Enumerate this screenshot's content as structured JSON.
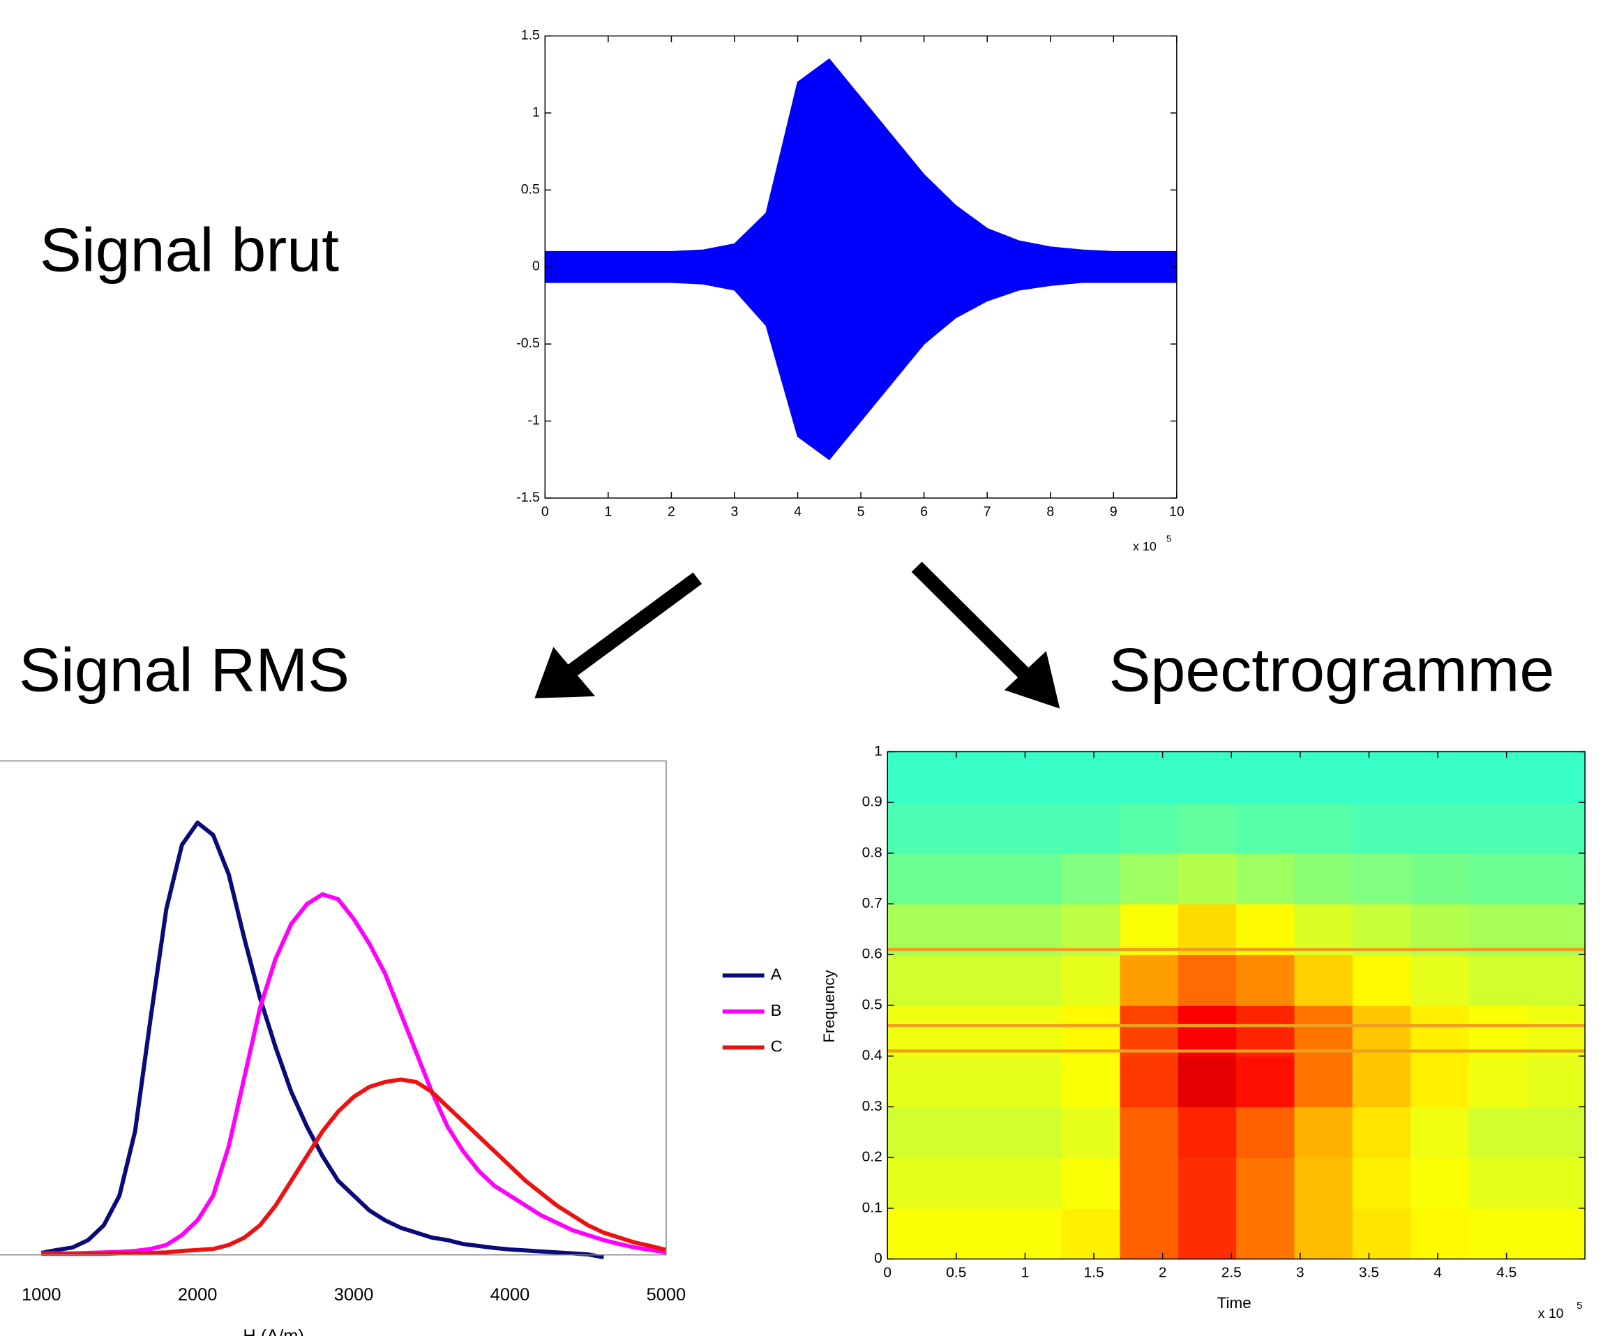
{
  "headings": [
    "Signal brut",
    "Signal RMS",
    "Spectrogramme"
  ],
  "chart_data": [
    {
      "type": "area",
      "x": [
        0,
        0.5,
        1,
        1.5,
        2,
        2.5,
        3,
        3.5,
        4,
        4.5,
        5,
        5.5,
        6,
        6.5,
        7,
        7.5,
        8,
        8.5,
        9,
        9.5,
        10
      ],
      "upper": [
        0.1,
        0.1,
        0.1,
        0.1,
        0.1,
        0.11,
        0.15,
        0.35,
        1.2,
        1.35,
        1.1,
        0.85,
        0.6,
        0.4,
        0.25,
        0.17,
        0.13,
        0.11,
        0.1,
        0.1,
        0.1
      ],
      "lower": [
        -0.1,
        -0.1,
        -0.1,
        -0.1,
        -0.1,
        -0.11,
        -0.15,
        -0.38,
        -1.1,
        -1.25,
        -1.0,
        -0.75,
        -0.5,
        -0.33,
        -0.22,
        -0.15,
        -0.12,
        -0.1,
        -0.1,
        -0.1,
        -0.1
      ],
      "color": "#0000ff",
      "xlim": [
        0,
        10
      ],
      "ylim": [
        -1.5,
        1.5
      ],
      "xticks": [
        0,
        1,
        2,
        3,
        4,
        5,
        6,
        7,
        8,
        9,
        10
      ],
      "yticks": [
        -1.5,
        -1,
        -0.5,
        0,
        0.5,
        1,
        1.5
      ],
      "x_scale_label": "x 10",
      "x_scale_exponent": "5"
    },
    {
      "type": "line",
      "x_label": "H (A/m)",
      "x": [
        1000,
        1100,
        1200,
        1300,
        1400,
        1500,
        1600,
        1700,
        1800,
        1900,
        2000,
        2100,
        2200,
        2300,
        2400,
        2500,
        2600,
        2700,
        2800,
        2900,
        3000,
        3100,
        3200,
        3300,
        3400,
        3500,
        3600,
        3700,
        3800,
        3900,
        4000,
        4100,
        4200,
        4300,
        4400,
        4500,
        4600,
        4700,
        4800,
        4900,
        5000
      ],
      "series": [
        {
          "name": "A",
          "color": "#0a0a7a",
          "values": [
            0.004,
            0.01,
            0.015,
            0.03,
            0.06,
            0.12,
            0.25,
            0.48,
            0.7,
            0.83,
            0.875,
            0.85,
            0.77,
            0.64,
            0.52,
            0.42,
            0.33,
            0.26,
            0.2,
            0.15,
            0.12,
            0.09,
            0.07,
            0.055,
            0.045,
            0.035,
            0.03,
            0.022,
            0.018,
            0.014,
            0.011,
            0.009,
            0.007,
            0.005,
            0.003,
            0.001,
            -0.005,
            null,
            null,
            null,
            null
          ]
        },
        {
          "name": "B",
          "color": "#ff00ff",
          "values": [
            0.003,
            0.003,
            0.003,
            0.004,
            0.005,
            0.006,
            0.008,
            0.012,
            0.02,
            0.04,
            0.07,
            0.12,
            0.22,
            0.36,
            0.5,
            0.6,
            0.67,
            0.71,
            0.73,
            0.72,
            0.68,
            0.63,
            0.57,
            0.49,
            0.41,
            0.33,
            0.26,
            0.21,
            0.17,
            0.14,
            0.12,
            0.1,
            0.08,
            0.065,
            0.05,
            0.04,
            0.03,
            0.022,
            0.015,
            0.01,
            0.005
          ]
        },
        {
          "name": "C",
          "color": "#ee1111",
          "values": [
            0.002,
            0.002,
            0.002,
            0.002,
            0.002,
            0.003,
            0.003,
            0.004,
            0.005,
            0.008,
            0.01,
            0.012,
            0.02,
            0.035,
            0.06,
            0.1,
            0.15,
            0.2,
            0.25,
            0.29,
            0.32,
            0.34,
            0.35,
            0.355,
            0.35,
            0.33,
            0.3,
            0.27,
            0.24,
            0.21,
            0.18,
            0.15,
            0.125,
            0.1,
            0.08,
            0.06,
            0.045,
            0.035,
            0.025,
            0.018,
            0.01
          ]
        }
      ],
      "xlim": [
        0,
        5000
      ],
      "ylim": [
        0,
        1
      ],
      "xticks": [
        1000,
        2000,
        3000,
        4000,
        5000
      ]
    },
    {
      "type": "heatmap",
      "x_label": "Time",
      "y_label": "Frequency",
      "colormap": "jet",
      "z": [
        [
          0.62,
          0.62,
          0.62,
          0.64,
          0.78,
          0.83,
          0.76,
          0.69,
          0.65,
          0.63,
          0.62,
          0.62
        ],
        [
          0.6,
          0.6,
          0.6,
          0.62,
          0.78,
          0.83,
          0.76,
          0.69,
          0.64,
          0.62,
          0.6,
          0.6
        ],
        [
          0.58,
          0.58,
          0.58,
          0.6,
          0.78,
          0.84,
          0.78,
          0.7,
          0.65,
          0.61,
          0.58,
          0.58
        ],
        [
          0.6,
          0.6,
          0.6,
          0.62,
          0.82,
          0.9,
          0.86,
          0.76,
          0.68,
          0.64,
          0.61,
          0.6
        ],
        [
          0.61,
          0.61,
          0.61,
          0.63,
          0.81,
          0.88,
          0.84,
          0.76,
          0.68,
          0.64,
          0.62,
          0.61
        ],
        [
          0.58,
          0.58,
          0.58,
          0.6,
          0.72,
          0.77,
          0.74,
          0.67,
          0.63,
          0.6,
          0.58,
          0.58
        ],
        [
          0.54,
          0.54,
          0.54,
          0.56,
          0.62,
          0.66,
          0.63,
          0.59,
          0.57,
          0.55,
          0.54,
          0.54
        ],
        [
          0.48,
          0.48,
          0.48,
          0.5,
          0.53,
          0.55,
          0.53,
          0.51,
          0.5,
          0.49,
          0.48,
          0.48
        ],
        [
          0.45,
          0.45,
          0.45,
          0.45,
          0.46,
          0.47,
          0.46,
          0.46,
          0.45,
          0.45,
          0.45,
          0.45
        ],
        [
          0.43,
          0.43,
          0.43,
          0.43,
          0.43,
          0.43,
          0.43,
          0.43,
          0.43,
          0.43,
          0.43,
          0.43
        ]
      ],
      "bands": [
        0.41,
        0.46,
        0.61
      ],
      "band_color": "#f0a020",
      "xlim": [
        0,
        5.07
      ],
      "ylim": [
        0,
        1
      ],
      "xticks": [
        0,
        0.5,
        1,
        1.5,
        2,
        2.5,
        3,
        3.5,
        4,
        4.5
      ],
      "yticks": [
        0,
        0.1,
        0.2,
        0.3,
        0.4,
        0.5,
        0.6,
        0.7,
        0.8,
        0.9,
        1
      ],
      "x_scale_label": "x 10",
      "x_scale_exponent": "5"
    }
  ]
}
